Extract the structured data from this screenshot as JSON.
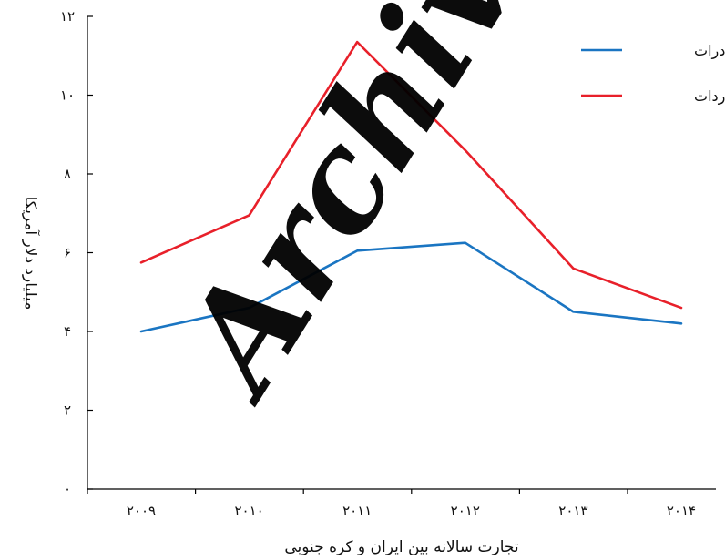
{
  "chart_data": {
    "type": "line",
    "title": "",
    "xlabel": "تجارت سالانه بین ایران و کره جنوبی",
    "ylabel": "میلیارد دلار آمریکا",
    "x_tick_labels": [
      "۲۰۰۹",
      "۲۰۱۰",
      "۲۰۱۱",
      "۲۰۱۲",
      "۲۰۱۳",
      "۲۰۱۴"
    ],
    "y_tick_labels": [
      "۰",
      "۲",
      "۴",
      "۶",
      "۸",
      "۱۰",
      "۱۲"
    ],
    "y_ticks": [
      0,
      2,
      4,
      6,
      8,
      10,
      12
    ],
    "ylim": [
      0,
      12
    ],
    "grid": false,
    "legend_position": "top-right",
    "series": [
      {
        "name": "صادرات",
        "color": "#1a75c2",
        "values": [
          4.0,
          4.6,
          6.05,
          6.25,
          4.5,
          4.2
        ]
      },
      {
        "name": "واردات",
        "color": "#e8202a",
        "values": [
          5.75,
          6.95,
          11.35,
          8.6,
          5.6,
          4.6
        ]
      }
    ],
    "watermark": "Archive"
  }
}
